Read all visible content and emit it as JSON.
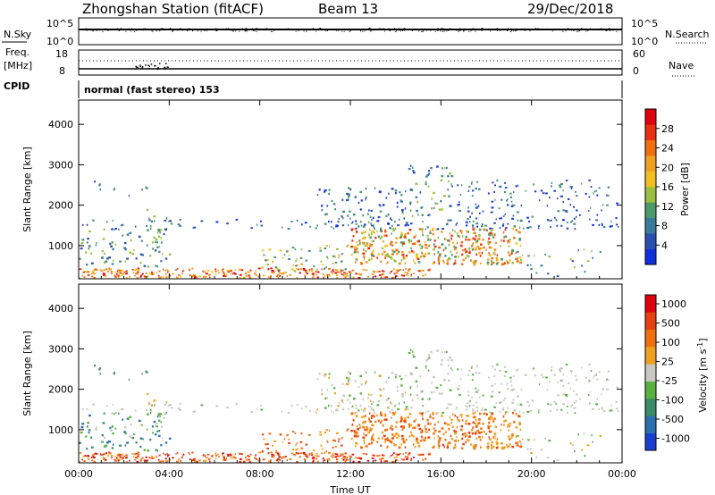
{
  "header": {
    "station": "Zhongshan Station (fitACF)",
    "beam": "Beam 13",
    "date": "29/Dec/2018"
  },
  "top_panels": {
    "nsky_label": "N.Sky",
    "nsky_ticks": [
      "10^5",
      "10^0"
    ],
    "nsearch_label": "N.Search",
    "nsearch_ticks": [
      "10^5",
      "10^0"
    ],
    "freq_label_1": "Freq.",
    "freq_label_2": "[MHz]",
    "freq_ticks": [
      "18",
      "8"
    ],
    "nave_label": "Nave",
    "nave_ticks": [
      "60",
      "0"
    ],
    "cpid_label": "CPID",
    "cpid_text": "normal (fast stereo) 153"
  },
  "chart_data": [
    {
      "type": "heatmap",
      "name": "power-panel",
      "ylabel": "Slant Range [km]",
      "xlabel": "",
      "y_ticks": [
        "1000",
        "2000",
        "3000",
        "4000"
      ],
      "ylim": [
        180,
        4600
      ],
      "x_ticks": [
        "00:00",
        "04:00",
        "08:00",
        "12:00",
        "16:00",
        "20:00",
        "00:00"
      ],
      "xlim_hours": [
        0,
        24
      ],
      "colorbar": {
        "label": "Power [dB]",
        "ticks": [
          "4",
          "8",
          "12",
          "16",
          "20",
          "24",
          "28"
        ],
        "range": [
          0,
          32
        ],
        "colors": [
          "#1030e0",
          "#2a4fb0",
          "#3a7a9a",
          "#4a9a6a",
          "#9ac040",
          "#f0c020",
          "#f0a020",
          "#f07010",
          "#e83010",
          "#e00010"
        ]
      }
    },
    {
      "type": "heatmap",
      "name": "velocity-panel",
      "ylabel": "Slant Range [km]",
      "xlabel": "Time UT",
      "y_ticks": [
        "1000",
        "2000",
        "3000",
        "4000"
      ],
      "ylim": [
        180,
        4600
      ],
      "x_ticks": [
        "00:00",
        "04:00",
        "08:00",
        "12:00",
        "16:00",
        "20:00",
        "00:00"
      ],
      "xlim_hours": [
        0,
        24
      ],
      "colorbar": {
        "label": "Velocity [m s^-1]",
        "ticks": [
          "1000",
          "500",
          "100",
          "25",
          "-25",
          "-100",
          "-500",
          "-1000"
        ],
        "colors": [
          "#1a3fd0",
          "#2a6fb0",
          "#3a8a6a",
          "#5ab040",
          "#c8c8c0",
          "#f0a020",
          "#f07010",
          "#e84010",
          "#e00010"
        ]
      }
    }
  ]
}
